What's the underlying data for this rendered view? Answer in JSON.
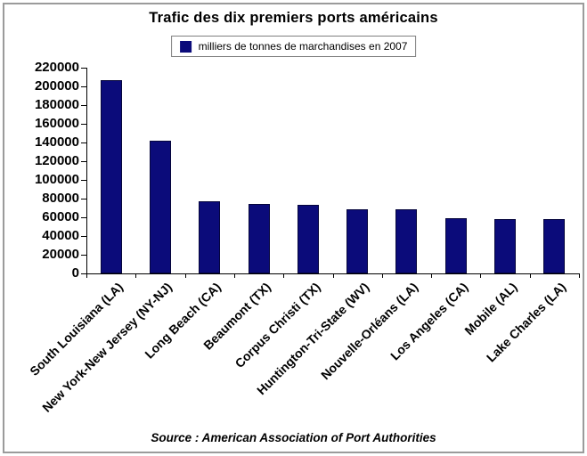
{
  "title": "Trafic des dix premiers ports américains",
  "legend": {
    "label": "milliers de tonnes de marchandises en 2007",
    "swatch_color": "#0b0b7a"
  },
  "source": "Source : American Association of Port Authorities",
  "colors": {
    "bar": "#0b0b7a",
    "bar_border": "#05053c",
    "axis": "#000000",
    "frame_border": "#9b9b9b",
    "legend_border": "#7f7f7f",
    "background": "#ffffff",
    "text": "#000000"
  },
  "chart_data": {
    "type": "bar",
    "title": "Trafic des dix premiers ports américains",
    "legend_entries": [
      "milliers de tonnes de marchandises en 2007"
    ],
    "legend_position": "top-center",
    "categories": [
      "South Louisiana (LA)",
      "New York-New Jersey (NY-NJ)",
      "Long Beach (CA)",
      "Beaumont (TX)",
      "Corpus Christi (TX)",
      "Huntington-Tri-State (WV)",
      "Nouvelle-Orléans (LA)",
      "Los Angeles (CA)",
      "Mobile (AL)",
      "Lake Charles (LA)"
    ],
    "values": [
      207000,
      142000,
      77500,
      74000,
      73500,
      69000,
      68500,
      59500,
      58000,
      58000
    ],
    "xlabel": "",
    "ylabel": "",
    "ylim": [
      0,
      220000
    ],
    "ytick_step": 20000,
    "grid": false,
    "bar_color": "#0b0b7a",
    "source": "Source : American Association of Port Authorities"
  }
}
